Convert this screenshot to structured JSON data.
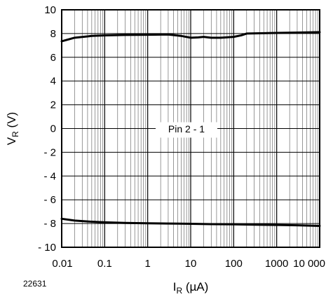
{
  "figure_number": "22631",
  "chart_data": {
    "type": "line",
    "title": "",
    "xlabel": {
      "main": "I",
      "sub": "R",
      "unit": " (µA)"
    },
    "ylabel": {
      "main": "V",
      "sub": "R",
      "unit": " (V)"
    },
    "x_scale": "log",
    "xlim": [
      0.01,
      10000
    ],
    "ylim": [
      -10,
      10
    ],
    "x_ticks": [
      {
        "value": 0.01,
        "label": "0.01"
      },
      {
        "value": 0.1,
        "label": "0.1"
      },
      {
        "value": 1,
        "label": "1"
      },
      {
        "value": 10,
        "label": "10"
      },
      {
        "value": 100,
        "label": "100"
      },
      {
        "value": 1000,
        "label": "1000"
      },
      {
        "value": 10000,
        "label": "10 000"
      }
    ],
    "y_ticks": [
      {
        "value": 10,
        "label": "10"
      },
      {
        "value": 8,
        "label": "8"
      },
      {
        "value": 6,
        "label": "6"
      },
      {
        "value": 4,
        "label": "4"
      },
      {
        "value": 2,
        "label": "2"
      },
      {
        "value": 0,
        "label": "0"
      },
      {
        "value": -2,
        "label": "- 2"
      },
      {
        "value": -4,
        "label": "- 4"
      },
      {
        "value": -6,
        "label": "- 6"
      },
      {
        "value": -8,
        "label": "- 8"
      },
      {
        "value": -10,
        "label": "- 10"
      }
    ],
    "grid": true,
    "annotation": "Pin 2 - 1",
    "series": [
      {
        "values": [
          [
            0.01,
            7.35
          ],
          [
            0.02,
            7.65
          ],
          [
            0.05,
            7.8
          ],
          [
            0.1,
            7.85
          ],
          [
            0.3,
            7.88
          ],
          [
            1,
            7.9
          ],
          [
            3,
            7.92
          ],
          [
            6,
            7.8
          ],
          [
            10,
            7.65
          ],
          [
            15,
            7.68
          ],
          [
            20,
            7.72
          ],
          [
            30,
            7.65
          ],
          [
            50,
            7.65
          ],
          [
            100,
            7.72
          ],
          [
            150,
            7.85
          ],
          [
            200,
            8.0
          ],
          [
            500,
            8.03
          ],
          [
            1000,
            8.05
          ],
          [
            3000,
            8.08
          ],
          [
            10000,
            8.12
          ]
        ]
      },
      {
        "values": [
          [
            0.01,
            -7.6
          ],
          [
            0.02,
            -7.75
          ],
          [
            0.05,
            -7.85
          ],
          [
            0.1,
            -7.9
          ],
          [
            0.3,
            -7.95
          ],
          [
            1,
            -7.98
          ],
          [
            3,
            -8.0
          ],
          [
            10,
            -8.02
          ],
          [
            30,
            -8.05
          ],
          [
            100,
            -8.07
          ],
          [
            300,
            -8.1
          ],
          [
            1000,
            -8.12
          ],
          [
            3000,
            -8.15
          ],
          [
            10000,
            -8.2
          ]
        ]
      }
    ]
  }
}
